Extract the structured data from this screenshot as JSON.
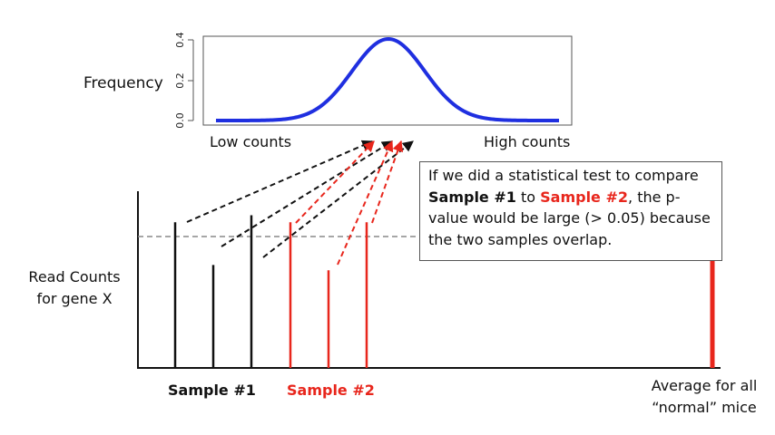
{
  "distribution": {
    "y_axis_label": "Frequency",
    "y_ticks": [
      "0.0",
      "0.2",
      "0.4"
    ],
    "ylim": [
      0,
      0.4
    ],
    "x_low_label": "Low counts",
    "x_high_label": "High counts",
    "curve_color": "#1f2fe0"
  },
  "bars": {
    "y_axis_label_line1": "Read Counts",
    "y_axis_label_line2": "for gene X",
    "sample1": {
      "label": "Sample #1",
      "color": "#111111",
      "relative_heights": [
        0.82,
        0.58,
        0.86
      ]
    },
    "sample2": {
      "label": "Sample #2",
      "color": "#e8261c",
      "relative_heights": [
        0.82,
        0.55,
        0.82
      ]
    },
    "normal_average": {
      "label_line1": "Average for all",
      "label_line2": "“normal” mice",
      "color": "#e8261c"
    },
    "dashed_reference_color": "#888888"
  },
  "callout": {
    "part1": "If we did a statistical test to compare ",
    "sample1": "Sample #1",
    "part2": " to ",
    "sample2": "Sample #2",
    "part3": ", the p-value would be large (> 0.05) because the two samples overlap."
  }
}
